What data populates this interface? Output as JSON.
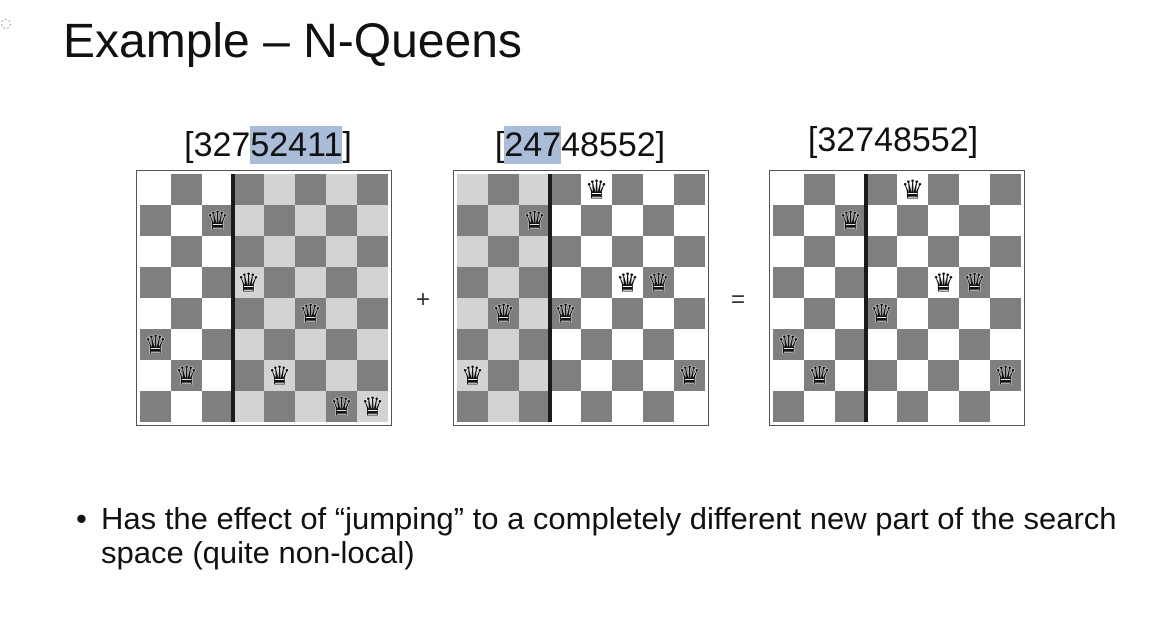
{
  "slide": {
    "title": "Example – N-Queens",
    "bullets": [
      {
        "text": "Has the effect of “jumping” to a completely different new part of the search space (quite non-local)"
      }
    ]
  },
  "operators": {
    "plus": "+",
    "equals": "="
  },
  "boards": [
    {
      "label_parts": [
        {
          "text": "[327",
          "highlight": false
        },
        {
          "text": "52411",
          "highlight": true
        },
        {
          "text": "]",
          "highlight": false
        }
      ],
      "queens": [
        3,
        2,
        7,
        5,
        2,
        4,
        1,
        1
      ],
      "split_after_column": 3,
      "shaded_side": "right"
    },
    {
      "label_parts": [
        {
          "text": "[",
          "highlight": false
        },
        {
          "text": "247",
          "highlight": true
        },
        {
          "text": "48552]",
          "highlight": false
        }
      ],
      "queens": [
        2,
        4,
        7,
        4,
        8,
        5,
        5,
        2
      ],
      "split_after_column": 3,
      "shaded_side": "left"
    },
    {
      "label_parts": [
        {
          "text": "[32748552]",
          "highlight": false
        }
      ],
      "queens": [
        3,
        2,
        7,
        4,
        8,
        5,
        5,
        2
      ],
      "split_after_column": 3,
      "shaded_side": "none"
    }
  ],
  "colors": {
    "dark_square": "#7f7f7f",
    "light_square": "#ffffff",
    "shaded_dark_square": "#7f7f7f",
    "shaded_light_square": "#d3d3d3",
    "divider": "#1a1a1a",
    "highlight": "#a9bcd8",
    "queen": "#111111"
  },
  "icons": {
    "queen": "♛",
    "corner": "circle-dots-icon"
  }
}
